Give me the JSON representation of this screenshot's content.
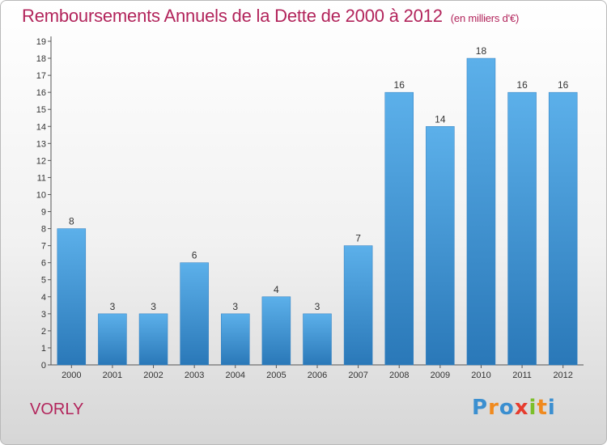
{
  "chart_data": {
    "type": "bar",
    "title": "Remboursements Annuels de la Dette de 2000 à 2012",
    "subtitle": "(en milliers d'€)",
    "categories": [
      "2000",
      "2001",
      "2002",
      "2003",
      "2004",
      "2005",
      "2006",
      "2007",
      "2008",
      "2009",
      "2010",
      "2011",
      "2012"
    ],
    "values": [
      8,
      3,
      3,
      6,
      3,
      4,
      3,
      7,
      16,
      14,
      18,
      16,
      16
    ],
    "ylim": [
      0,
      19
    ],
    "yticks": [
      0,
      1,
      2,
      3,
      4,
      5,
      6,
      7,
      8,
      9,
      10,
      11,
      12,
      13,
      14,
      15,
      16,
      17,
      18,
      19
    ],
    "grid": false,
    "legend": "none",
    "bar_color_top": "#5cb0ea",
    "bar_color_bottom": "#2a78b8"
  },
  "footer": {
    "commune": "VORLY",
    "logo_letters": [
      "P",
      "r",
      "o",
      "x",
      "i",
      "t",
      "i"
    ],
    "logo_colors": [
      "#3b8fd0",
      "#f08a1e",
      "#3b8fd0",
      "#e63c2e",
      "#7cbf2a",
      "#f08a1e",
      "#3b8fd0"
    ]
  },
  "colors": {
    "title": "#b2245b",
    "axis": "#555555"
  }
}
